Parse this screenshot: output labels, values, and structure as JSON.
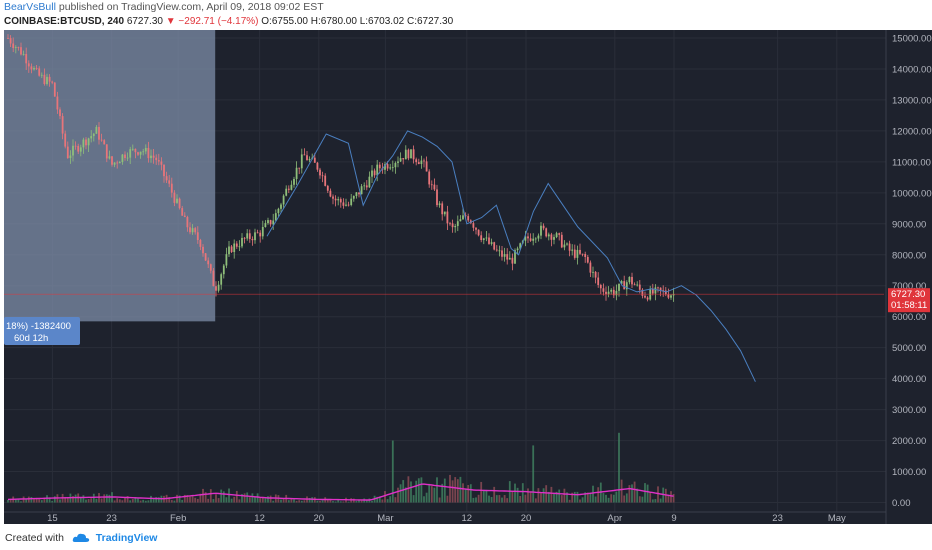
{
  "header": {
    "author": "BearVsBull",
    "published_text": "published on TradingView.com, April 09, 2018 09:02 EST"
  },
  "symbol_bar": {
    "symbol": "COINBASE:BTCUSD, 240",
    "last": "6727.30",
    "change": "▼ −292.71 (−4.17%)",
    "open": "O:6755.00",
    "high": "H:6780.00",
    "low": "L:6703.02",
    "close": "C:6727.30"
  },
  "footer": {
    "created_with": "Created with",
    "brand": "TradingView"
  },
  "colors": {
    "background": "#1e222d",
    "up_candle": "#8fbf7a",
    "down_candle": "#e8757a",
    "projection_line": "#4a7fc0",
    "volume_ma": "#e030c8",
    "price_label": "#e0353b",
    "selection_box": "#7d8ea8"
  },
  "measure_box": {
    "line1": "18%) -1382400",
    "line2": "60d 12h"
  },
  "price_tag": {
    "price": "6727.30",
    "countdown": "01:58:11"
  },
  "chart_data": {
    "type": "candlestick",
    "title": "COINBASE:BTCUSD, 240",
    "x_ticks": [
      "15",
      "23",
      "Feb",
      "12",
      "20",
      "Mar",
      "12",
      "20",
      "Apr",
      "9",
      "23",
      "May"
    ],
    "y_ticks": [
      "15000.00",
      "14000.00",
      "13000.00",
      "12000.00",
      "11000.00",
      "10000.00",
      "9000.00",
      "8000.00",
      "7000.00",
      "6000.00",
      "5000.00",
      "4000.00",
      "3000.00",
      "2000.00",
      "1000.00",
      "0.00"
    ],
    "ylim": [
      -300,
      15200
    ],
    "current_price": 6727.3,
    "series": [
      {
        "name": "BTCUSD close",
        "type": "candlestick",
        "dates": [
          "2018-01-09",
          "2018-01-11",
          "2018-01-13",
          "2018-01-15",
          "2018-01-17",
          "2018-01-19",
          "2018-01-21",
          "2018-01-23",
          "2018-01-25",
          "2018-01-27",
          "2018-01-29",
          "2018-01-31",
          "2018-02-02",
          "2018-02-04",
          "2018-02-06",
          "2018-02-08",
          "2018-02-10",
          "2018-02-12",
          "2018-02-14",
          "2018-02-16",
          "2018-02-18",
          "2018-02-20",
          "2018-02-22",
          "2018-02-24",
          "2018-02-26",
          "2018-02-28",
          "2018-03-02",
          "2018-03-04",
          "2018-03-06",
          "2018-03-08",
          "2018-03-10",
          "2018-03-12",
          "2018-03-14",
          "2018-03-16",
          "2018-03-18",
          "2018-03-20",
          "2018-03-22",
          "2018-03-24",
          "2018-03-26",
          "2018-03-28",
          "2018-03-30",
          "2018-04-01",
          "2018-04-03",
          "2018-04-05",
          "2018-04-07",
          "2018-04-09"
        ],
        "values": [
          15000,
          14500,
          13800,
          13500,
          11200,
          11600,
          12000,
          10900,
          11300,
          11400,
          11100,
          10100,
          9000,
          8400,
          6900,
          8200,
          8500,
          8700,
          9200,
          10300,
          11200,
          10800,
          9800,
          9600,
          10200,
          10800,
          11000,
          11300,
          11000,
          9700,
          8800,
          9300,
          8600,
          8100,
          7800,
          8500,
          8800,
          8600,
          8100,
          7900,
          6900,
          6800,
          7200,
          6700,
          6800,
          6727
        ]
      },
      {
        "name": "projection",
        "type": "line",
        "dates": [
          "2018-02-13",
          "2018-02-17",
          "2018-02-21",
          "2018-02-24",
          "2018-02-26",
          "2018-02-28",
          "2018-03-02",
          "2018-03-04",
          "2018-03-06",
          "2018-03-08",
          "2018-03-10",
          "2018-03-12",
          "2018-03-14",
          "2018-03-16",
          "2018-03-18",
          "2018-03-19",
          "2018-03-21",
          "2018-03-23",
          "2018-03-25",
          "2018-03-27",
          "2018-03-29",
          "2018-03-31",
          "2018-04-02",
          "2018-04-04",
          "2018-04-06",
          "2018-04-08",
          "2018-04-10",
          "2018-04-12",
          "2018-04-14",
          "2018-04-16",
          "2018-04-18",
          "2018-04-20"
        ],
        "values": [
          8600,
          10200,
          11900,
          11600,
          9600,
          10600,
          11200,
          12000,
          11800,
          11500,
          11000,
          9000,
          9200,
          9600,
          8200,
          8000,
          9400,
          10300,
          9600,
          8900,
          8400,
          7900,
          7000,
          6800,
          6900,
          6800,
          7000,
          6700,
          6200,
          5600,
          4900,
          3900
        ]
      },
      {
        "name": "Volume",
        "type": "bar",
        "dates": [
          "2018-01-09",
          "2018-01-16",
          "2018-01-23",
          "2018-01-30",
          "2018-02-06",
          "2018-02-13",
          "2018-02-20",
          "2018-02-27",
          "2018-03-06",
          "2018-03-13",
          "2018-03-20",
          "2018-03-27",
          "2018-04-03",
          "2018-04-09"
        ],
        "values": [
          100,
          150,
          180,
          120,
          300,
          150,
          100,
          80,
          600,
          400,
          350,
          250,
          450,
          200
        ]
      }
    ]
  }
}
